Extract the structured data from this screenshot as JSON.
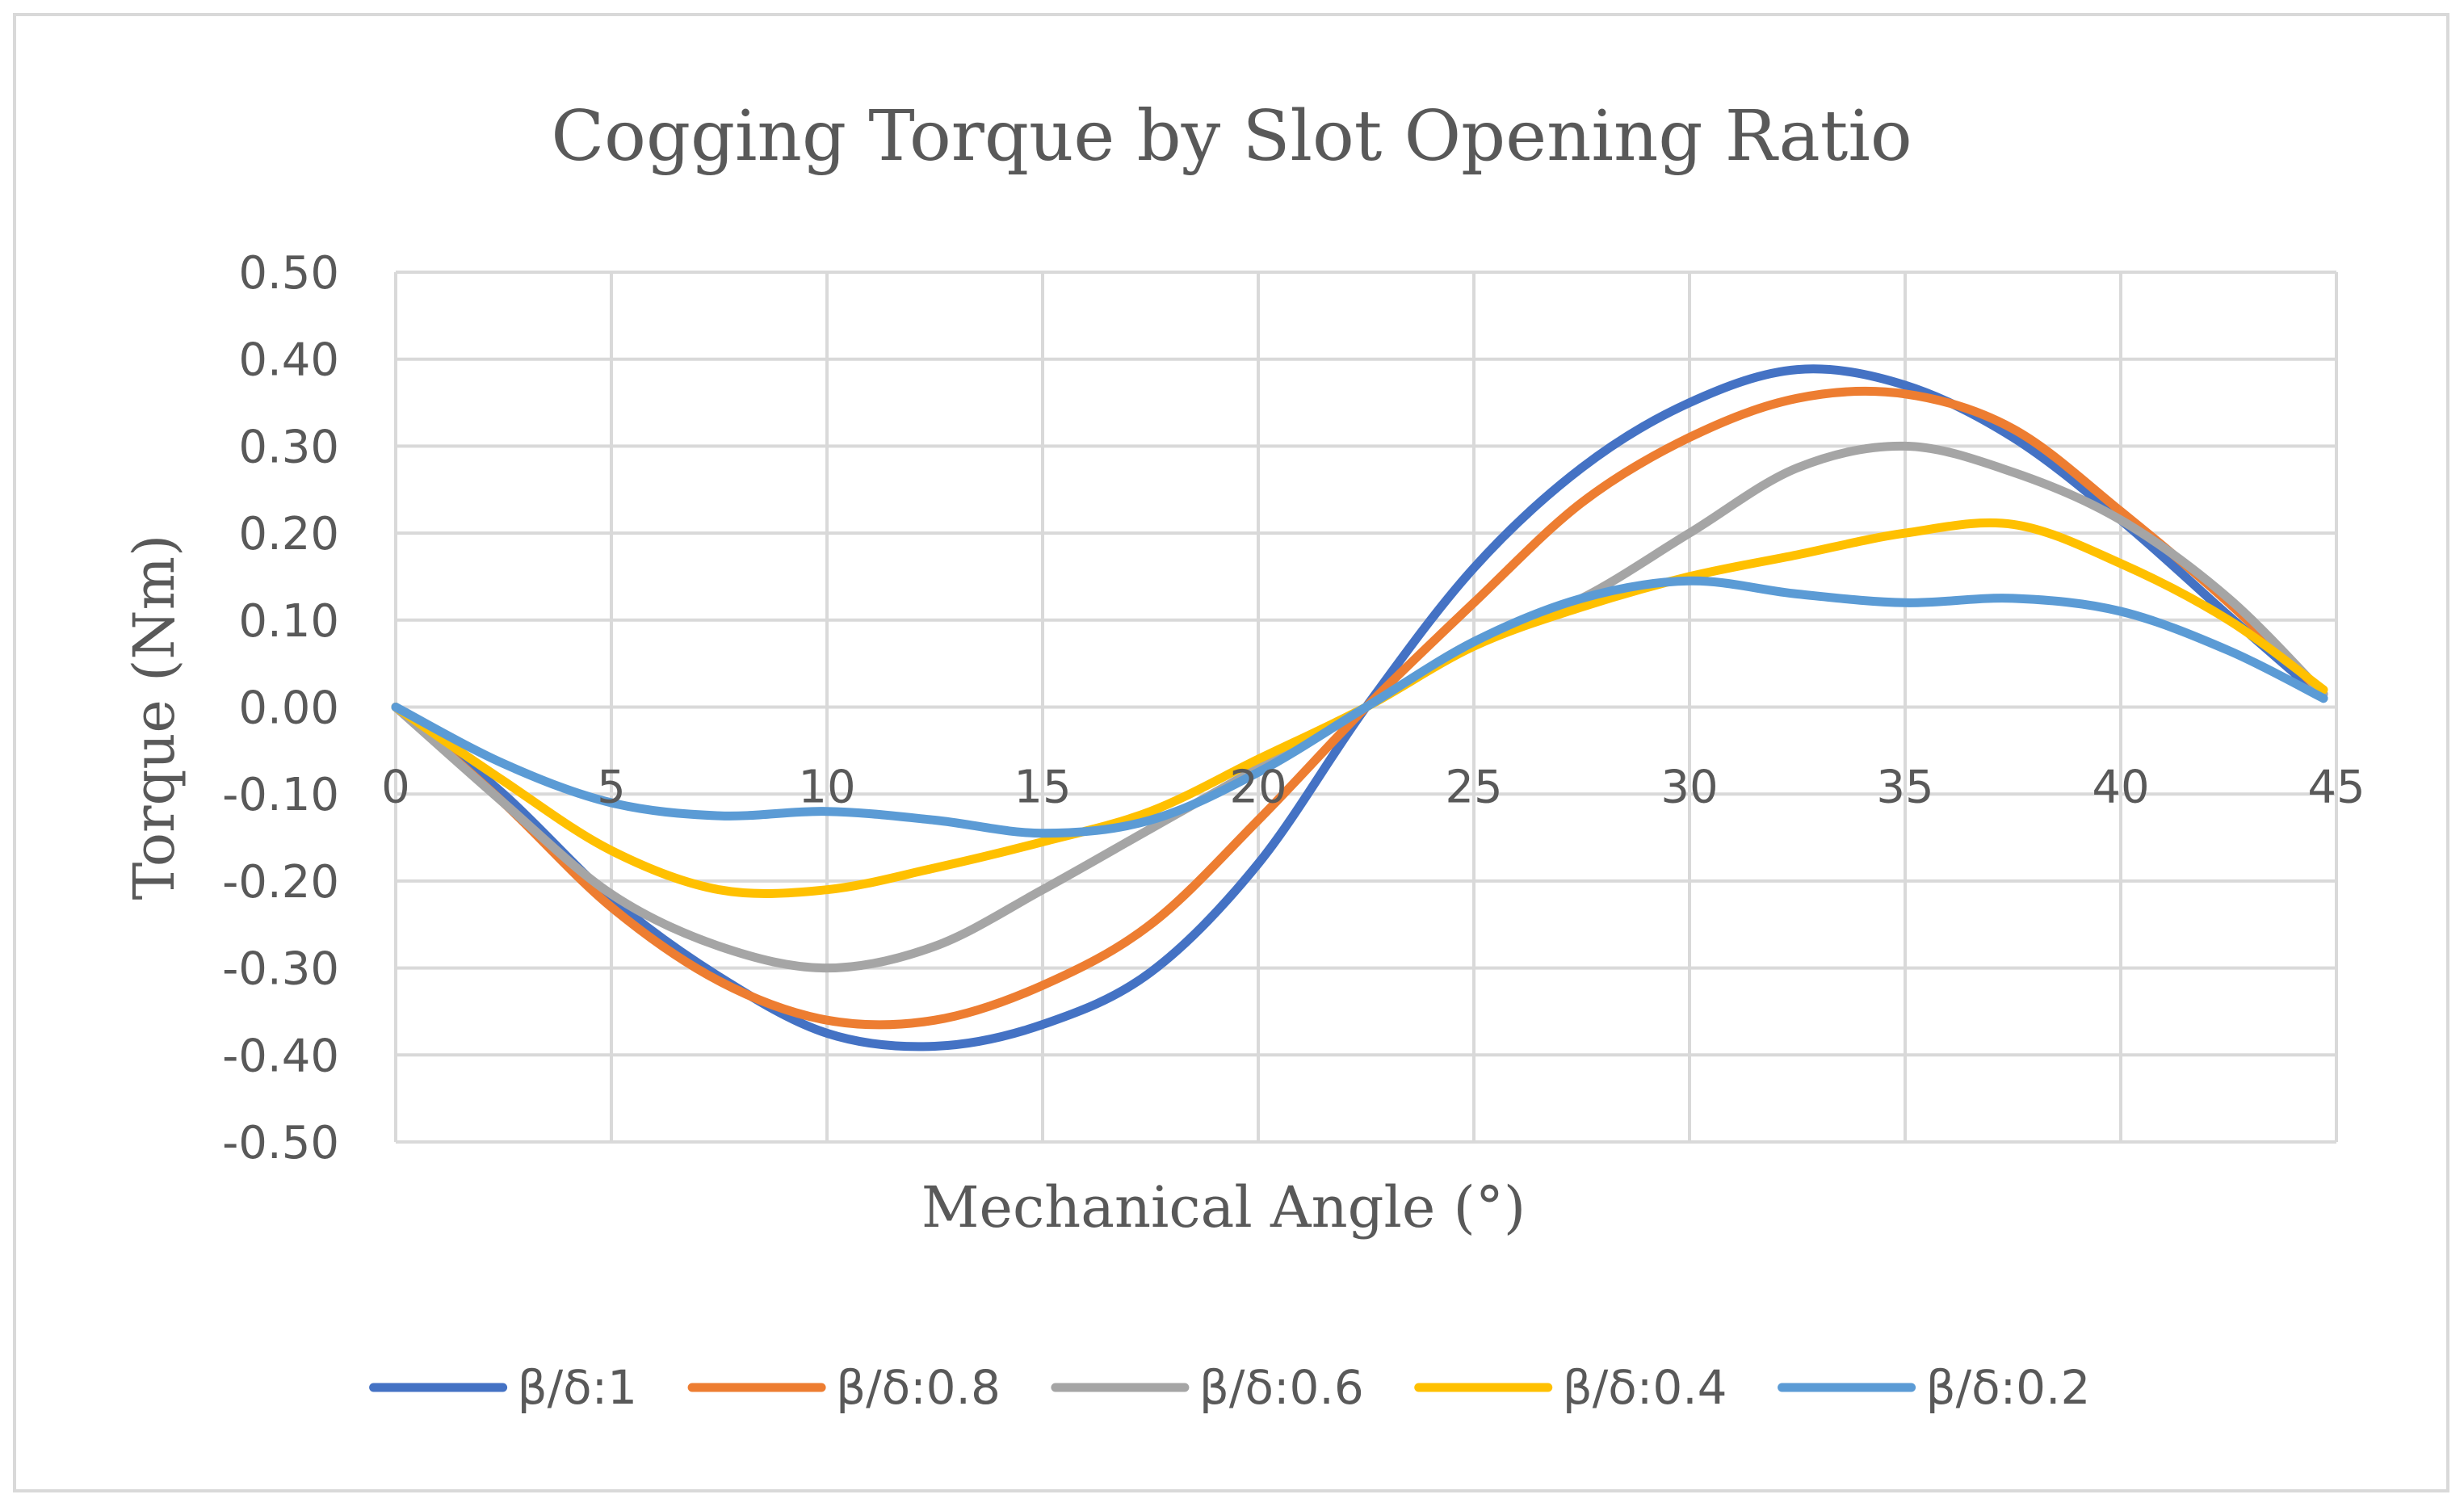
{
  "chart_data": {
    "type": "line",
    "title": "Cogging Torque by Slot Opening Ratio",
    "xlabel": "Mechanical Angle (°)",
    "ylabel": "Torque (Nm)",
    "xlim": [
      0,
      45
    ],
    "ylim": [
      -0.5,
      0.5
    ],
    "x_ticks": [
      "0",
      "5",
      "10",
      "15",
      "20",
      "25",
      "30",
      "35",
      "40",
      "45"
    ],
    "y_ticks": [
      "0.50",
      "0.40",
      "0.30",
      "0.20",
      "0.10",
      "0.00",
      "-0.10",
      "-0.20",
      "-0.30",
      "-0.40",
      "-0.50"
    ],
    "grid": true,
    "legend_position": "bottom",
    "x": [
      0,
      2.5,
      5,
      7.5,
      10,
      12.5,
      15,
      17.5,
      20,
      22.5,
      25,
      27.5,
      30,
      32.5,
      35,
      37.5,
      40,
      42.5,
      44.7
    ],
    "series": [
      {
        "name": "β/δ:1",
        "color": "#4472c4",
        "values": [
          0.0,
          -0.1,
          -0.22,
          -0.31,
          -0.375,
          -0.39,
          -0.365,
          -0.305,
          -0.18,
          0.0,
          0.16,
          0.275,
          0.35,
          0.388,
          0.37,
          0.31,
          0.215,
          0.105,
          0.01
        ]
      },
      {
        "name": "β/δ:0.8",
        "color": "#ed7d31",
        "values": [
          0.0,
          -0.11,
          -0.23,
          -0.315,
          -0.36,
          -0.36,
          -0.32,
          -0.25,
          -0.13,
          0.0,
          0.12,
          0.235,
          0.31,
          0.355,
          0.36,
          0.32,
          0.225,
          0.12,
          0.015
        ]
      },
      {
        "name": "β/δ:0.6",
        "color": "#a5a5a5",
        "values": [
          0.0,
          -0.11,
          -0.215,
          -0.275,
          -0.3,
          -0.275,
          -0.21,
          -0.14,
          -0.07,
          0.0,
          0.075,
          0.125,
          0.2,
          0.275,
          0.3,
          0.27,
          0.215,
          0.125,
          0.015
        ]
      },
      {
        "name": "β/δ:0.4",
        "color": "#ffc000",
        "values": [
          0.0,
          -0.085,
          -0.165,
          -0.21,
          -0.21,
          -0.185,
          -0.155,
          -0.12,
          -0.06,
          0.0,
          0.07,
          0.115,
          0.15,
          0.175,
          0.2,
          0.21,
          0.165,
          0.1,
          0.02
        ]
      },
      {
        "name": "β/δ:0.2",
        "color": "#5b9bd5",
        "values": [
          0.0,
          -0.065,
          -0.11,
          -0.125,
          -0.12,
          -0.13,
          -0.145,
          -0.13,
          -0.075,
          0.0,
          0.075,
          0.125,
          0.145,
          0.13,
          0.12,
          0.125,
          0.11,
          0.065,
          0.01
        ]
      }
    ]
  }
}
